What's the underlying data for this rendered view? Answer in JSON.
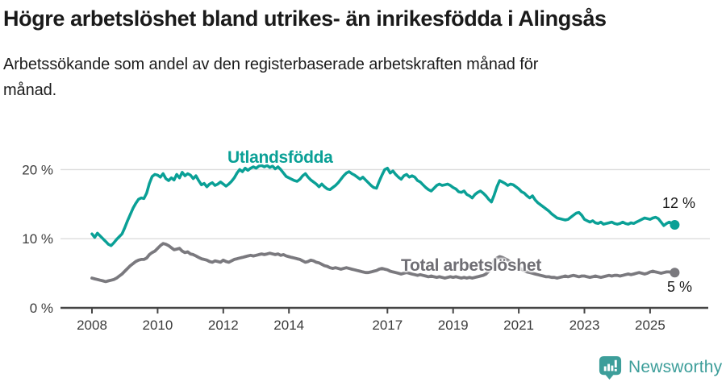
{
  "header": {
    "title": "Högre arbetslöshet bland utrikes- än inrikesfödda i Alingsås",
    "subtitle_lines": [
      "Arbetssökande som andel av den registerbaserade arbetskraften månad för",
      "månad."
    ]
  },
  "chart_data": {
    "type": "line",
    "title": "Högre arbetslöshet bland utrikes- än inrikesfödda i Alingsås",
    "subtitle": "Arbetssökande som andel av den registerbaserade arbetskraften månad för månad.",
    "x_start_year": 2008,
    "points_per_year": 12,
    "x_ticks": [
      2008,
      2010,
      2012,
      2014,
      2017,
      2019,
      2021,
      2023,
      2025
    ],
    "y_ticks": [
      {
        "value": 0,
        "label": "0 %"
      },
      {
        "value": 10,
        "label": "10 %"
      },
      {
        "value": 20,
        "label": "20 %"
      }
    ],
    "ylim": [
      0,
      24
    ],
    "grid": true,
    "legend_position": "inline-labels",
    "series": [
      {
        "name": "Utlandsfödda",
        "color": "#0aa096",
        "end_label": "12 %",
        "values": [
          10.7,
          10.2,
          10.8,
          10.4,
          10.0,
          9.6,
          9.2,
          9.0,
          9.4,
          9.9,
          10.3,
          10.7,
          11.6,
          12.6,
          13.5,
          14.4,
          15.1,
          15.7,
          15.9,
          15.8,
          16.6,
          18.0,
          19.0,
          19.3,
          19.2,
          18.9,
          19.4,
          18.7,
          18.4,
          18.8,
          18.5,
          19.3,
          18.8,
          19.6,
          19.1,
          19.4,
          19.2,
          18.7,
          19.1,
          18.4,
          17.8,
          18.0,
          17.5,
          17.9,
          18.1,
          17.7,
          17.9,
          18.2,
          17.9,
          17.6,
          17.9,
          18.3,
          18.8,
          19.5,
          20.0,
          19.7,
          20.2,
          19.9,
          20.2,
          20.4,
          20.2,
          20.5,
          20.6,
          20.4,
          20.6,
          20.3,
          20.5,
          20.1,
          20.4,
          20.0,
          19.5,
          19.0,
          18.8,
          18.6,
          18.4,
          18.3,
          18.6,
          19.1,
          19.4,
          18.9,
          18.5,
          18.2,
          17.9,
          17.5,
          17.9,
          17.5,
          17.2,
          17.1,
          17.4,
          17.7,
          18.1,
          18.6,
          19.1,
          19.5,
          19.7,
          19.4,
          19.2,
          18.9,
          18.6,
          18.9,
          18.5,
          18.1,
          17.7,
          17.4,
          17.3,
          18.3,
          19.2,
          20.0,
          20.2,
          19.5,
          19.8,
          19.3,
          18.9,
          18.6,
          19.1,
          19.3,
          18.9,
          19.1,
          18.9,
          18.4,
          18.2,
          17.8,
          17.4,
          17.1,
          16.9,
          17.3,
          17.7,
          17.9,
          17.7,
          17.8,
          17.9,
          17.7,
          17.4,
          17.2,
          16.8,
          16.7,
          16.9,
          16.4,
          16.2,
          15.9,
          16.4,
          16.7,
          16.9,
          16.6,
          16.2,
          15.7,
          15.3,
          16.3,
          17.5,
          18.4,
          18.2,
          18.0,
          17.7,
          17.9,
          17.8,
          17.5,
          17.2,
          16.8,
          16.6,
          16.2,
          15.9,
          16.2,
          15.6,
          15.2,
          14.9,
          14.6,
          14.3,
          14.0,
          13.6,
          13.3,
          13.0,
          12.9,
          12.8,
          12.7,
          12.8,
          13.1,
          13.4,
          13.7,
          13.8,
          13.4,
          12.8,
          12.6,
          12.4,
          12.6,
          12.3,
          12.2,
          12.4,
          12.1,
          12.2,
          12.3,
          12.4,
          12.2,
          12.1,
          12.2,
          12.4,
          12.2,
          12.1,
          12.3,
          12.2,
          12.4,
          12.6,
          12.8,
          13.0,
          12.9,
          12.8,
          13.0,
          13.1,
          12.9,
          12.4,
          11.9,
          12.2,
          12.4,
          12.2,
          12.0
        ]
      },
      {
        "name": "Total arbetslöshet",
        "color": "#7a797e",
        "end_label": "5 %",
        "values": [
          4.3,
          4.2,
          4.1,
          4.0,
          3.9,
          3.8,
          3.9,
          4.0,
          4.1,
          4.3,
          4.6,
          4.9,
          5.3,
          5.7,
          6.1,
          6.4,
          6.7,
          6.9,
          7.0,
          7.0,
          7.2,
          7.7,
          8.0,
          8.2,
          8.6,
          9.0,
          9.3,
          9.2,
          9.0,
          8.7,
          8.4,
          8.5,
          8.6,
          8.2,
          8.0,
          8.1,
          7.8,
          7.7,
          7.5,
          7.3,
          7.1,
          7.0,
          6.9,
          6.7,
          6.6,
          6.8,
          6.7,
          6.6,
          6.9,
          6.7,
          6.6,
          6.8,
          7.0,
          7.1,
          7.2,
          7.3,
          7.4,
          7.5,
          7.6,
          7.5,
          7.6,
          7.7,
          7.8,
          7.7,
          7.8,
          7.9,
          7.8,
          7.7,
          7.8,
          7.6,
          7.7,
          7.5,
          7.4,
          7.3,
          7.2,
          7.1,
          7.0,
          6.8,
          6.6,
          6.7,
          6.9,
          6.8,
          6.6,
          6.5,
          6.3,
          6.1,
          6.0,
          5.8,
          5.7,
          5.8,
          5.7,
          5.6,
          5.7,
          5.8,
          5.7,
          5.6,
          5.5,
          5.4,
          5.3,
          5.2,
          5.1,
          5.1,
          5.2,
          5.3,
          5.4,
          5.6,
          5.7,
          5.6,
          5.5,
          5.3,
          5.2,
          5.1,
          5.0,
          4.9,
          5.0,
          5.1,
          5.0,
          4.9,
          4.8,
          4.7,
          4.8,
          4.7,
          4.6,
          4.5,
          4.6,
          4.5,
          4.4,
          4.5,
          4.4,
          4.3,
          4.4,
          4.5,
          4.4,
          4.5,
          4.4,
          4.3,
          4.4,
          4.3,
          4.4,
          4.3,
          4.4,
          4.5,
          4.6,
          4.7,
          4.9,
          5.3,
          6.0,
          6.8,
          7.2,
          7.4,
          7.3,
          7.1,
          6.9,
          6.6,
          6.3,
          6.0,
          5.8,
          5.6,
          5.4,
          5.2,
          5.1,
          5.0,
          4.9,
          4.8,
          4.7,
          4.6,
          4.5,
          4.5,
          4.4,
          4.4,
          4.3,
          4.4,
          4.5,
          4.6,
          4.5,
          4.6,
          4.7,
          4.6,
          4.5,
          4.6,
          4.6,
          4.5,
          4.4,
          4.5,
          4.6,
          4.5,
          4.4,
          4.5,
          4.6,
          4.7,
          4.6,
          4.7,
          4.7,
          4.6,
          4.7,
          4.8,
          4.9,
          4.8,
          4.9,
          5.0,
          5.1,
          5.0,
          4.9,
          5.0,
          5.2,
          5.3,
          5.2,
          5.1,
          5.0,
          5.1,
          5.2,
          5.2,
          5.1,
          5.1
        ]
      }
    ]
  },
  "footer": {
    "brand": "Newsworthy"
  },
  "colors": {
    "accent_teal": "#0aa096",
    "line_gray": "#7a797e",
    "label_gray": "#6f6e74",
    "title_text": "#1a1a1a",
    "axis_text": "#3b3b3b",
    "axis_line": "#454545",
    "grid_line": "#dcdcdc",
    "brand_teal": "#3d9e9a"
  }
}
